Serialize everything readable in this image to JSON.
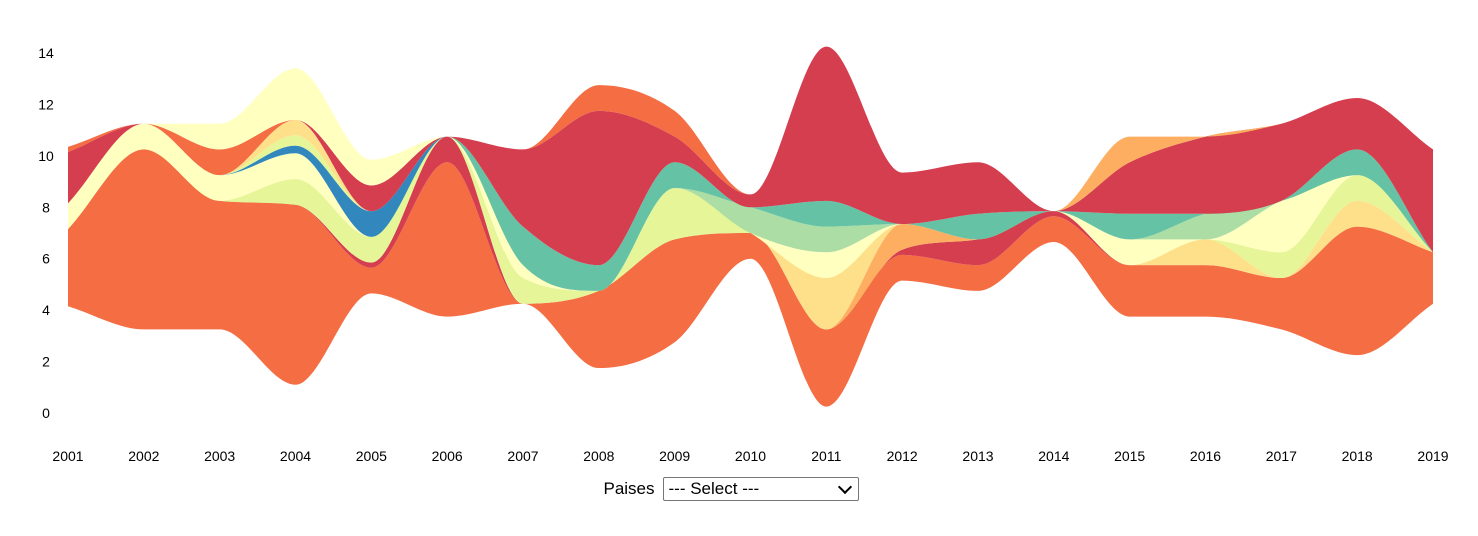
{
  "chart_data": {
    "type": "area",
    "layout": "streamgraph",
    "x": [
      "2001",
      "2002",
      "2003",
      "2004",
      "2005",
      "2006",
      "2007",
      "2008",
      "2009",
      "2010",
      "2011",
      "2012",
      "2013",
      "2014",
      "2015",
      "2016",
      "2017",
      "2018",
      "2019"
    ],
    "ylim": [
      0,
      14
    ],
    "yticks": [
      0,
      2,
      4,
      6,
      8,
      10,
      12,
      14
    ],
    "grid": false,
    "series": [
      {
        "color": "#f46d43",
        "values": [
          3,
          7,
          5,
          7,
          1,
          6,
          0,
          3,
          4,
          1,
          3,
          1,
          1,
          1,
          2,
          2,
          2,
          5,
          2
        ]
      },
      {
        "color": "#d53e4f",
        "values": [
          0,
          0,
          0,
          0,
          0.2,
          1,
          0,
          0,
          0,
          0,
          0,
          0.2,
          1,
          0.2,
          0,
          0,
          0,
          0,
          0
        ]
      },
      {
        "color": "#fdae61",
        "values": [
          0,
          0,
          0,
          0,
          0,
          0,
          0,
          0,
          0,
          0,
          0,
          1,
          0,
          0,
          0,
          0,
          0,
          0,
          0
        ]
      },
      {
        "color": "#fee08b",
        "values": [
          0,
          0,
          0,
          0,
          0,
          0,
          0,
          0,
          0,
          0,
          2,
          0,
          0,
          0,
          0,
          1,
          0,
          1,
          0
        ]
      },
      {
        "color": "#e6f598",
        "values": [
          0,
          0,
          0,
          1,
          1,
          0,
          1,
          0,
          2,
          0,
          0,
          0,
          0,
          0,
          0,
          0,
          1,
          1,
          0
        ]
      },
      {
        "color": "#ffffbf",
        "values": [
          1,
          1,
          1,
          1,
          0,
          0,
          0.5,
          0,
          0,
          0,
          1,
          0,
          0,
          0,
          1,
          0,
          2,
          0,
          0
        ]
      },
      {
        "color": "#abdda4",
        "values": [
          0,
          0,
          0,
          0,
          0,
          0,
          0,
          0,
          0,
          1,
          1,
          0,
          0,
          0,
          0,
          1,
          0,
          0,
          0
        ]
      },
      {
        "color": "#66c2a5",
        "values": [
          0,
          0,
          0,
          0,
          0,
          0,
          1.5,
          1,
          1,
          0,
          1,
          0,
          1,
          0,
          1,
          0,
          0,
          1,
          0
        ]
      },
      {
        "color": "#3288bd",
        "values": [
          0,
          0,
          0,
          0.3,
          1,
          0,
          0,
          0,
          0,
          0,
          0,
          0,
          0,
          0,
          0,
          0,
          0,
          0,
          0
        ]
      },
      {
        "color": "#e6f598",
        "values": [
          0,
          0,
          0,
          0.4,
          0,
          0,
          0,
          0,
          0,
          0,
          0,
          0,
          0,
          0,
          0,
          0,
          0,
          0,
          0
        ]
      },
      {
        "color": "#fee08b",
        "values": [
          0,
          0,
          0,
          0.6,
          0,
          0,
          0,
          0,
          0,
          0,
          0,
          0,
          0,
          0,
          0,
          0,
          0,
          0,
          0
        ]
      },
      {
        "color": "#d53e4f",
        "values": [
          2,
          0,
          0,
          0,
          1,
          0,
          3,
          6,
          1,
          0.5,
          6,
          2,
          2,
          0,
          2,
          3,
          3,
          2,
          4
        ]
      },
      {
        "color": "#f46d43",
        "values": [
          0.2,
          0,
          1,
          0,
          0,
          0,
          0,
          1,
          1,
          0,
          0,
          0,
          0,
          0,
          0,
          0,
          0,
          0,
          0
        ]
      },
      {
        "color": "#ffffbf",
        "values": [
          0,
          0,
          1,
          2,
          1,
          0,
          0,
          0,
          0,
          0,
          0,
          0,
          0,
          0,
          0,
          0,
          0,
          0,
          0
        ]
      },
      {
        "color": "#fdae61",
        "values": [
          0,
          0,
          0,
          0,
          0,
          0,
          0,
          0,
          0,
          0,
          0,
          0,
          0,
          0,
          1,
          0,
          0,
          0,
          0
        ]
      }
    ]
  },
  "controls": {
    "filter_label": "Paises",
    "select_value": "--- Select ---"
  }
}
